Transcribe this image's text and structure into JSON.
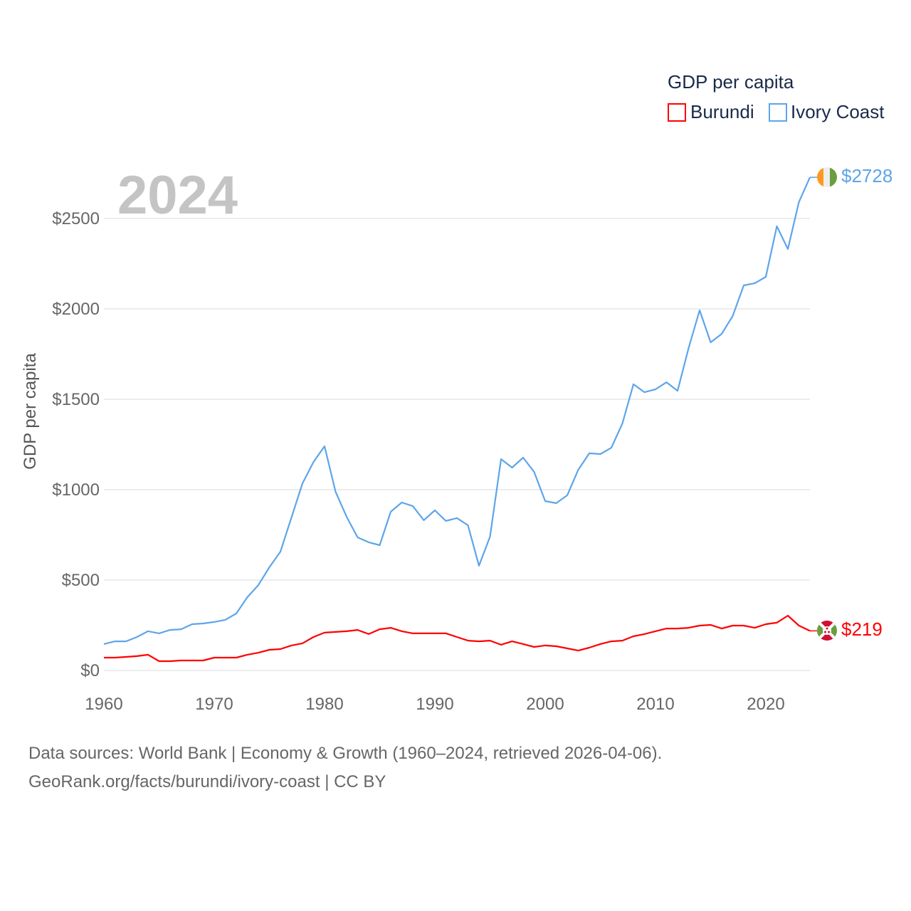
{
  "chart_data": {
    "type": "line",
    "title": "GDP per capita",
    "ylabel": "GDP per capita",
    "xlabel": "",
    "year_label": "2024",
    "xlim": [
      1960,
      2024
    ],
    "ylim": [
      0,
      2750
    ],
    "x_ticks": [
      1960,
      1970,
      1980,
      1990,
      2000,
      2010,
      2020
    ],
    "y_ticks": [
      0,
      500,
      1000,
      1500,
      2000,
      2500
    ],
    "x_tick_labels": [
      "1960",
      "1970",
      "1980",
      "1990",
      "2000",
      "2010",
      "2020"
    ],
    "y_tick_labels": [
      "$0",
      "$500",
      "$1000",
      "$1500",
      "$2000",
      "$2500"
    ],
    "grid": true,
    "legend_position": "top-right",
    "x": [
      1960,
      1961,
      1962,
      1963,
      1964,
      1965,
      1966,
      1967,
      1968,
      1969,
      1970,
      1971,
      1972,
      1973,
      1974,
      1975,
      1976,
      1977,
      1978,
      1979,
      1980,
      1981,
      1982,
      1983,
      1984,
      1985,
      1986,
      1987,
      1988,
      1989,
      1990,
      1991,
      1992,
      1993,
      1994,
      1995,
      1996,
      1997,
      1998,
      1999,
      2000,
      2001,
      2002,
      2003,
      2004,
      2005,
      2006,
      2007,
      2008,
      2009,
      2010,
      2011,
      2012,
      2013,
      2014,
      2015,
      2016,
      2017,
      2018,
      2019,
      2020,
      2021,
      2022,
      2023,
      2024
    ],
    "series": [
      {
        "name": "Burundi",
        "color": "#ff0000",
        "end_label": "$219",
        "values": [
          71,
          71,
          75,
          79,
          87,
          51,
          51,
          55,
          55,
          55,
          71,
          71,
          71,
          87,
          98,
          114,
          118,
          138,
          150,
          185,
          209,
          213,
          217,
          224,
          201,
          228,
          236,
          217,
          205,
          205,
          205,
          205,
          185,
          165,
          161,
          165,
          142,
          161,
          146,
          130,
          138,
          134,
          122,
          110,
          126,
          146,
          161,
          165,
          189,
          201,
          217,
          232,
          232,
          236,
          248,
          252,
          232,
          248,
          248,
          236,
          256,
          264,
          303,
          248,
          219
        ]
      },
      {
        "name": "Ivory Coast",
        "color": "#5da5ea",
        "end_label": "$2728",
        "values": [
          146,
          161,
          161,
          185,
          217,
          205,
          224,
          228,
          256,
          260,
          268,
          280,
          315,
          405,
          472,
          571,
          657,
          846,
          1035,
          1153,
          1240,
          988,
          850,
          736,
          709,
          693,
          878,
          929,
          909,
          831,
          886,
          827,
          843,
          803,
          579,
          740,
          1169,
          1122,
          1177,
          1098,
          937,
          925,
          969,
          1110,
          1201,
          1197,
          1232,
          1366,
          1583,
          1539,
          1555,
          1594,
          1547,
          1783,
          1992,
          1815,
          1862,
          1961,
          2130,
          2142,
          2177,
          2457,
          2331,
          2591,
          2728
        ]
      }
    ]
  },
  "footer": {
    "line1": "Data sources: World Bank | Economy & Growth (1960–2024, retrieved 2026-04-06).",
    "line2": "GeoRank.org/facts/burundi/ivory-coast | CC BY"
  }
}
